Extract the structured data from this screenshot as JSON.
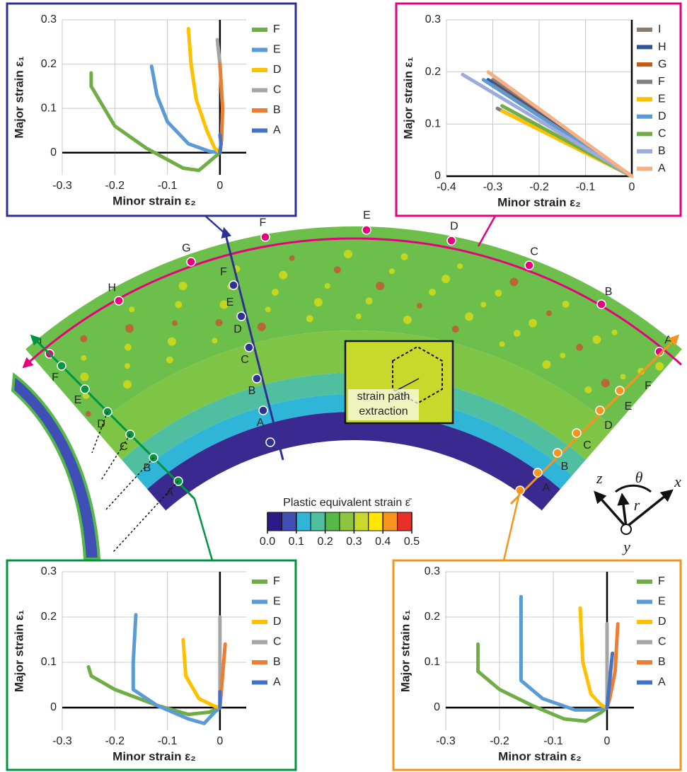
{
  "chart_data": [
    {
      "type": "line",
      "xlabel": "Minor strain ε₂",
      "ylabel": "Major strain ε₁",
      "xlim": [
        -0.3,
        0.05
      ],
      "ylim": [
        -0.05,
        0.3
      ],
      "xticks": [
        -0.3,
        -0.2,
        -0.1,
        0
      ],
      "yticks": [
        0,
        0.1,
        0.2,
        0.3
      ],
      "grid": true,
      "legend": "right",
      "series": [
        {
          "name": "F",
          "color": "#70ad47",
          "x": [
            -0.245,
            -0.245,
            -0.2,
            -0.14,
            -0.07,
            -0.04,
            -0.02,
            0
          ],
          "values": [
            0.18,
            0.15,
            0.06,
            0.01,
            -0.035,
            -0.04,
            -0.02,
            0
          ]
        },
        {
          "name": "E",
          "color": "#5b9bd5",
          "x": [
            -0.13,
            -0.12,
            -0.1,
            -0.06,
            -0.02,
            0
          ],
          "values": [
            0.195,
            0.13,
            0.07,
            0.02,
            0.003,
            0
          ]
        },
        {
          "name": "D",
          "color": "#ffc000",
          "x": [
            -0.06,
            -0.055,
            -0.045,
            -0.025,
            -0.01,
            0
          ],
          "values": [
            0.28,
            0.2,
            0.12,
            0.05,
            0.01,
            0
          ]
        },
        {
          "name": "C",
          "color": "#a5a5a5",
          "x": [
            -0.005,
            0,
            0.005,
            0.003,
            0
          ],
          "values": [
            0.255,
            0.2,
            0.1,
            0.03,
            0
          ]
        },
        {
          "name": "B",
          "color": "#ed7d31",
          "x": [
            0,
            0.005,
            0.003,
            0
          ],
          "values": [
            0.2,
            0.1,
            0.03,
            0
          ]
        },
        {
          "name": "A",
          "color": "#4472c4",
          "x": [
            0,
            0.002,
            0
          ],
          "values": [
            0.04,
            0.02,
            0
          ]
        }
      ]
    },
    {
      "type": "line",
      "xlabel": "Minor strain ε₂",
      "ylabel": "Major strain ε₁",
      "xlim": [
        -0.4,
        0
      ],
      "ylim": [
        0,
        0.3
      ],
      "xticks": [
        -0.4,
        -0.3,
        -0.2,
        -0.1,
        0
      ],
      "yticks": [
        0,
        0.1,
        0.2,
        0.3
      ],
      "grid": true,
      "legend": "right",
      "series": [
        {
          "name": "I",
          "color": "#8c7b70",
          "x": [
            -0.3,
            0
          ],
          "values": [
            0.185,
            0
          ]
        },
        {
          "name": "H",
          "color": "#2f5597",
          "x": [
            -0.31,
            0
          ],
          "values": [
            0.185,
            0
          ]
        },
        {
          "name": "G",
          "color": "#c55a11",
          "x": [
            -0.3,
            0
          ],
          "values": [
            0.175,
            0
          ]
        },
        {
          "name": "F",
          "color": "#7f7f7f",
          "x": [
            -0.29,
            0
          ],
          "values": [
            0.13,
            0
          ]
        },
        {
          "name": "E",
          "color": "#ffc000",
          "x": [
            -0.28,
            0
          ],
          "values": [
            0.125,
            0
          ]
        },
        {
          "name": "D",
          "color": "#5b9bd5",
          "x": [
            -0.32,
            0
          ],
          "values": [
            0.185,
            0
          ]
        },
        {
          "name": "C",
          "color": "#70ad47",
          "x": [
            -0.28,
            0
          ],
          "values": [
            0.135,
            0
          ]
        },
        {
          "name": "B",
          "color": "#9dabdc",
          "x": [
            -0.365,
            0
          ],
          "values": [
            0.195,
            0
          ]
        },
        {
          "name": "A",
          "color": "#f4b183",
          "x": [
            -0.31,
            0
          ],
          "values": [
            0.2,
            0
          ]
        }
      ]
    },
    {
      "type": "line",
      "xlabel": "Minor strain ε₂",
      "ylabel": "Major strain ε₁",
      "xlim": [
        -0.3,
        0.05
      ],
      "ylim": [
        -0.05,
        0.3
      ],
      "xticks": [
        -0.3,
        -0.2,
        -0.1,
        0
      ],
      "yticks": [
        0,
        0.1,
        0.2,
        0.3
      ],
      "grid": true,
      "legend": "right",
      "series": [
        {
          "name": "F",
          "color": "#70ad47",
          "x": [
            -0.25,
            -0.245,
            -0.2,
            -0.12,
            -0.06,
            -0.02,
            0
          ],
          "values": [
            0.09,
            0.07,
            0.04,
            0.005,
            -0.015,
            -0.01,
            0
          ]
        },
        {
          "name": "E",
          "color": "#5b9bd5",
          "x": [
            -0.16,
            -0.165,
            -0.165,
            -0.12,
            -0.06,
            -0.03,
            -0.01,
            0
          ],
          "values": [
            0.205,
            0.1,
            0.04,
            0.005,
            -0.025,
            -0.035,
            -0.01,
            0
          ]
        },
        {
          "name": "D",
          "color": "#ffc000",
          "x": [
            -0.07,
            -0.065,
            -0.04,
            -0.01,
            0
          ],
          "values": [
            0.15,
            0.07,
            0.02,
            0.003,
            0
          ]
        },
        {
          "name": "C",
          "color": "#a5a5a5",
          "x": [
            0,
            0,
            0
          ],
          "values": [
            0.2,
            0.1,
            0
          ]
        },
        {
          "name": "B",
          "color": "#ed7d31",
          "x": [
            0.01,
            0.005,
            0
          ],
          "values": [
            0.14,
            0.07,
            0
          ]
        },
        {
          "name": "A",
          "color": "#4472c4",
          "x": [
            0,
            0
          ],
          "values": [
            0.035,
            0
          ]
        }
      ]
    },
    {
      "type": "line",
      "xlabel": "Minor strain ε₂",
      "ylabel": "Major strain ε₁",
      "xlim": [
        -0.3,
        0.05
      ],
      "ylim": [
        -0.05,
        0.3
      ],
      "xticks": [
        -0.3,
        -0.2,
        -0.1,
        0
      ],
      "yticks": [
        0,
        0.1,
        0.2,
        0.3
      ],
      "grid": true,
      "legend": "right",
      "series": [
        {
          "name": "F",
          "color": "#70ad47",
          "x": [
            -0.24,
            -0.24,
            -0.2,
            -0.14,
            -0.08,
            -0.04,
            -0.01,
            0
          ],
          "values": [
            0.14,
            0.08,
            0.04,
            0.005,
            -0.025,
            -0.03,
            -0.01,
            0
          ]
        },
        {
          "name": "E",
          "color": "#5b9bd5",
          "x": [
            -0.16,
            -0.16,
            -0.12,
            -0.06,
            -0.02,
            0
          ],
          "values": [
            0.245,
            0.06,
            0.02,
            -0.005,
            -0.005,
            0
          ]
        },
        {
          "name": "D",
          "color": "#ffc000",
          "x": [
            -0.05,
            -0.045,
            -0.03,
            -0.01,
            0
          ],
          "values": [
            0.22,
            0.1,
            0.03,
            0.005,
            0
          ]
        },
        {
          "name": "C",
          "color": "#a5a5a5",
          "x": [
            0,
            0,
            0
          ],
          "values": [
            0.185,
            0.1,
            0
          ]
        },
        {
          "name": "B",
          "color": "#ed7d31",
          "x": [
            0.02,
            0.015,
            0.005,
            0
          ],
          "values": [
            0.185,
            0.08,
            0.02,
            0
          ]
        },
        {
          "name": "A",
          "color": "#4472c4",
          "x": [
            0.01,
            0.005,
            0
          ],
          "values": [
            0.12,
            0.06,
            0
          ]
        }
      ]
    }
  ],
  "map": {
    "magenta_points": [
      "A",
      "B",
      "C",
      "D",
      "E",
      "F",
      "G",
      "H",
      "I"
    ],
    "navy_points": [
      "A",
      "B",
      "C",
      "D",
      "E",
      "F"
    ],
    "green_points": [
      "A",
      "B",
      "C",
      "D",
      "E",
      "F"
    ],
    "orange_points": [
      "A",
      "B",
      "C",
      "D",
      "E",
      "F"
    ],
    "inset_label": [
      "strain path",
      "extraction"
    ],
    "colorbar": {
      "title": "Plastic equivalent strain ε̄",
      "lim": [
        0,
        0.5
      ],
      "colors": [
        "#2e1a87",
        "#3f4fb5",
        "#2fb5d8",
        "#4fbf9f",
        "#56b848",
        "#8cc63f",
        "#c8d92b",
        "#ffe600",
        "#f7941d",
        "#e8302a"
      ],
      "ticks": [
        {
          "value": 0,
          "label": "0.0"
        },
        {
          "value": 0.1,
          "label": "0.1"
        },
        {
          "value": 0.2,
          "label": "0.2"
        },
        {
          "value": 0.3,
          "label": "0.3"
        },
        {
          "value": 0.4,
          "label": "0.4"
        },
        {
          "value": 0.5,
          "label": "0.5"
        }
      ]
    },
    "axes": {
      "z": "z",
      "theta": "θ",
      "x": "x",
      "r": "r",
      "y": "y"
    }
  }
}
